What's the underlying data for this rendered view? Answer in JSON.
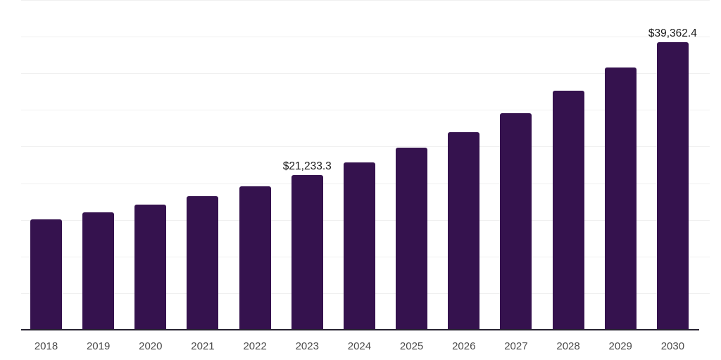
{
  "chart_data": {
    "type": "bar",
    "title": "",
    "xlabel": "",
    "ylabel": "",
    "categories": [
      "2018",
      "2019",
      "2020",
      "2021",
      "2022",
      "2023",
      "2024",
      "2025",
      "2026",
      "2027",
      "2028",
      "2029",
      "2030"
    ],
    "values": [
      15150,
      16100,
      17150,
      18300,
      19650,
      21233.3,
      22900,
      24950,
      27050,
      29650,
      32700,
      35850,
      39362.4
    ],
    "value_labels": {
      "2023": "$21,233.3",
      "2030": "$39,362.4"
    },
    "ylim": [
      0,
      45000
    ],
    "gridline_step": 5000,
    "grid": "horizontal",
    "legend": "none"
  },
  "colors": {
    "background": "#ffffff",
    "bar": "#35124e",
    "gridline": "#f0f0f0",
    "axis_line": "#262230",
    "tick_label": "#4b4b4b",
    "data_label": "#1a1a1a"
  }
}
